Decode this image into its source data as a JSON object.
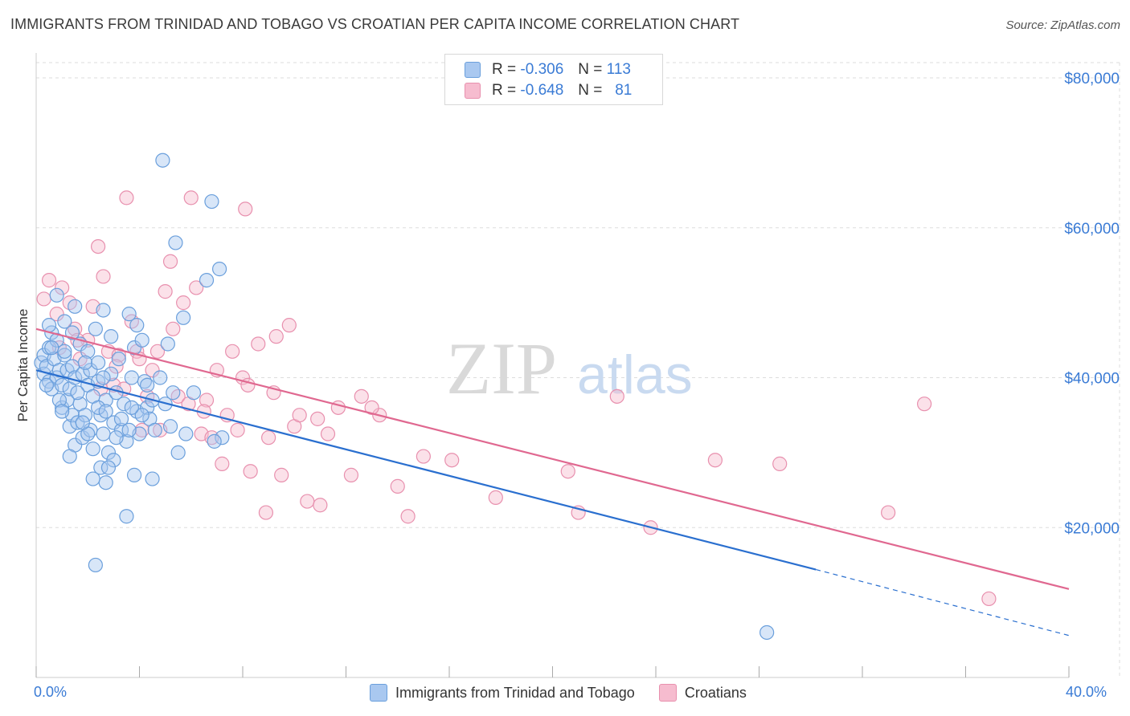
{
  "title": "IMMIGRANTS FROM TRINIDAD AND TOBAGO VS CROATIAN PER CAPITA INCOME CORRELATION CHART",
  "source": "Source: ZipAtlas.com",
  "watermark": {
    "zip": "ZIP",
    "atlas": "atlas"
  },
  "legend_top": [
    {
      "r_label": "R =",
      "r_value": "-0.306",
      "n_label": "N =",
      "n_value": "113"
    },
    {
      "r_label": "R =",
      "r_value": "-0.648",
      "n_label": "N =",
      "n_value": "81"
    }
  ],
  "legend_bottom": [
    {
      "label": "Immigrants from Trinidad and Tobago"
    },
    {
      "label": "Croatians"
    }
  ],
  "colors": {
    "series1_fill": "#a9c8f0",
    "series1_stroke": "#6a9fdc",
    "series1_line": "#2a6fcf",
    "series2_fill": "#f6bccf",
    "series2_stroke": "#e890ae",
    "series2_line": "#e06890",
    "tick_text": "#3a7bd5",
    "grid": "#dddddd"
  },
  "chart_data": {
    "type": "scatter",
    "title": "IMMIGRANTS FROM TRINIDAD AND TOBAGO VS CROATIAN PER CAPITA INCOME CORRELATION CHART",
    "xlabel": "",
    "ylabel": "Per Capita Income",
    "xlim": [
      0,
      40
    ],
    "ylim": [
      0,
      80000
    ],
    "x_tick_labels": [
      "0.0%",
      "40.0%"
    ],
    "y_ticks": [
      20000,
      40000,
      60000,
      80000
    ],
    "y_tick_labels": [
      "$20,000",
      "$40,000",
      "$60,000",
      "$80,000"
    ],
    "grid": true,
    "legend_position": "top-center",
    "series": [
      {
        "name": "Immigrants from Trinidad and Tobago",
        "r": -0.306,
        "n": 113,
        "trend": {
          "x": [
            0,
            30.2
          ],
          "y": [
            41000,
            14400
          ]
        },
        "trend_dashed": {
          "x": [
            30.2,
            40
          ],
          "y": [
            14400,
            5600
          ]
        },
        "points": [
          [
            0.2,
            42000
          ],
          [
            0.3,
            43000
          ],
          [
            0.3,
            40500
          ],
          [
            0.4,
            41500
          ],
          [
            0.5,
            39500
          ],
          [
            0.5,
            44000
          ],
          [
            0.6,
            46000
          ],
          [
            0.6,
            38500
          ],
          [
            0.7,
            42500
          ],
          [
            0.8,
            45000
          ],
          [
            0.8,
            40000
          ],
          [
            0.9,
            41000
          ],
          [
            1.0,
            39000
          ],
          [
            1.0,
            36000
          ],
          [
            1.1,
            47500
          ],
          [
            1.1,
            43000
          ],
          [
            1.2,
            41000
          ],
          [
            1.2,
            37000
          ],
          [
            1.3,
            38500
          ],
          [
            1.3,
            33500
          ],
          [
            1.4,
            35000
          ],
          [
            1.4,
            41500
          ],
          [
            1.5,
            40000
          ],
          [
            1.5,
            31000
          ],
          [
            1.6,
            34000
          ],
          [
            1.7,
            36500
          ],
          [
            1.7,
            44500
          ],
          [
            1.8,
            40500
          ],
          [
            1.8,
            32000
          ],
          [
            1.9,
            35000
          ],
          [
            2.0,
            39000
          ],
          [
            2.0,
            43500
          ],
          [
            2.1,
            41000
          ],
          [
            2.1,
            33000
          ],
          [
            2.2,
            37500
          ],
          [
            2.2,
            30500
          ],
          [
            2.3,
            46500
          ],
          [
            2.4,
            39500
          ],
          [
            2.5,
            35000
          ],
          [
            2.5,
            28000
          ],
          [
            2.6,
            32500
          ],
          [
            2.7,
            37000
          ],
          [
            2.7,
            26000
          ],
          [
            2.8,
            30000
          ],
          [
            2.9,
            40500
          ],
          [
            3.0,
            34000
          ],
          [
            3.0,
            29000
          ],
          [
            3.1,
            38000
          ],
          [
            3.2,
            42500
          ],
          [
            3.3,
            33000
          ],
          [
            3.4,
            36500
          ],
          [
            3.5,
            31500
          ],
          [
            3.6,
            48500
          ],
          [
            3.7,
            40000
          ],
          [
            3.8,
            44000
          ],
          [
            3.8,
            27000
          ],
          [
            3.9,
            35500
          ],
          [
            4.0,
            32500
          ],
          [
            4.1,
            45000
          ],
          [
            4.2,
            39500
          ],
          [
            4.3,
            36000
          ],
          [
            4.4,
            34500
          ],
          [
            4.5,
            26500
          ],
          [
            4.6,
            33000
          ],
          [
            4.8,
            40000
          ],
          [
            5.0,
            36500
          ],
          [
            5.1,
            44500
          ],
          [
            5.2,
            33500
          ],
          [
            5.3,
            38000
          ],
          [
            5.5,
            30000
          ],
          [
            5.7,
            48000
          ],
          [
            6.1,
            38000
          ],
          [
            6.6,
            53000
          ],
          [
            7.2,
            32000
          ],
          [
            3.5,
            21500
          ],
          [
            2.3,
            15000
          ],
          [
            4.9,
            69000
          ],
          [
            6.8,
            63500
          ],
          [
            5.4,
            58000
          ],
          [
            7.1,
            54500
          ],
          [
            0.8,
            51000
          ],
          [
            1.5,
            49500
          ],
          [
            2.6,
            49000
          ],
          [
            3.9,
            47000
          ],
          [
            1.1,
            43500
          ],
          [
            0.4,
            39000
          ],
          [
            0.9,
            37000
          ],
          [
            1.6,
            38000
          ],
          [
            2.4,
            36000
          ],
          [
            3.3,
            34500
          ],
          [
            4.1,
            35000
          ],
          [
            2.0,
            32500
          ],
          [
            1.3,
            29500
          ],
          [
            2.8,
            28000
          ],
          [
            3.6,
            33000
          ],
          [
            2.2,
            26500
          ],
          [
            1.0,
            35500
          ],
          [
            0.6,
            44000
          ],
          [
            2.9,
            45500
          ],
          [
            5.8,
            32500
          ],
          [
            4.5,
            37000
          ],
          [
            3.1,
            32000
          ],
          [
            1.9,
            42000
          ],
          [
            2.6,
            40000
          ],
          [
            0.5,
            47000
          ],
          [
            1.4,
            46000
          ],
          [
            2.4,
            42000
          ],
          [
            3.7,
            36000
          ],
          [
            4.3,
            39000
          ],
          [
            1.8,
            34000
          ],
          [
            2.7,
            35500
          ],
          [
            28.3,
            6000
          ],
          [
            6.9,
            31500
          ]
        ]
      },
      {
        "name": "Croatians",
        "r": -0.648,
        "n": 81,
        "trend": {
          "x": [
            0,
            40
          ],
          "y": [
            46500,
            11800
          ]
        },
        "points": [
          [
            0.3,
            50500
          ],
          [
            0.5,
            53000
          ],
          [
            0.8,
            48500
          ],
          [
            1.0,
            52000
          ],
          [
            1.3,
            50000
          ],
          [
            1.5,
            46500
          ],
          [
            1.7,
            42500
          ],
          [
            2.0,
            45000
          ],
          [
            2.2,
            49500
          ],
          [
            2.4,
            57500
          ],
          [
            2.6,
            53500
          ],
          [
            2.8,
            43500
          ],
          [
            3.0,
            39000
          ],
          [
            3.2,
            43000
          ],
          [
            3.4,
            38500
          ],
          [
            3.5,
            64000
          ],
          [
            3.7,
            47500
          ],
          [
            3.9,
            43500
          ],
          [
            4.1,
            33000
          ],
          [
            4.3,
            37500
          ],
          [
            4.5,
            41000
          ],
          [
            4.7,
            43500
          ],
          [
            4.8,
            33000
          ],
          [
            5.0,
            51500
          ],
          [
            5.2,
            55500
          ],
          [
            5.3,
            46500
          ],
          [
            5.5,
            37500
          ],
          [
            5.7,
            50000
          ],
          [
            5.9,
            36500
          ],
          [
            6.0,
            64000
          ],
          [
            6.2,
            52000
          ],
          [
            6.4,
            32500
          ],
          [
            6.6,
            37000
          ],
          [
            6.8,
            32000
          ],
          [
            7.0,
            41000
          ],
          [
            7.2,
            28500
          ],
          [
            7.4,
            35000
          ],
          [
            7.6,
            43500
          ],
          [
            7.8,
            33000
          ],
          [
            8.0,
            40000
          ],
          [
            8.1,
            62500
          ],
          [
            8.3,
            27500
          ],
          [
            8.6,
            44500
          ],
          [
            8.9,
            22000
          ],
          [
            9.0,
            32000
          ],
          [
            9.2,
            38000
          ],
          [
            9.3,
            45500
          ],
          [
            9.5,
            27000
          ],
          [
            9.8,
            47000
          ],
          [
            10.0,
            33500
          ],
          [
            10.2,
            35000
          ],
          [
            10.5,
            23500
          ],
          [
            10.9,
            34500
          ],
          [
            11.3,
            32500
          ],
          [
            11.7,
            36000
          ],
          [
            12.2,
            27000
          ],
          [
            12.6,
            37500
          ],
          [
            13.3,
            35000
          ],
          [
            14.0,
            25500
          ],
          [
            14.4,
            21500
          ],
          [
            16.1,
            29000
          ],
          [
            17.8,
            24000
          ],
          [
            20.6,
            27500
          ],
          [
            21.0,
            22000
          ],
          [
            22.5,
            37500
          ],
          [
            23.8,
            20000
          ],
          [
            26.3,
            29000
          ],
          [
            28.8,
            28500
          ],
          [
            33.0,
            22000
          ],
          [
            34.4,
            36500
          ],
          [
            36.9,
            10500
          ],
          [
            1.6,
            45000
          ],
          [
            2.5,
            38500
          ],
          [
            3.1,
            41500
          ],
          [
            4.0,
            42500
          ],
          [
            6.5,
            35500
          ],
          [
            8.2,
            39000
          ],
          [
            11.0,
            23000
          ],
          [
            13.0,
            36000
          ],
          [
            15.0,
            29500
          ],
          [
            0.9,
            44000
          ]
        ]
      }
    ]
  }
}
